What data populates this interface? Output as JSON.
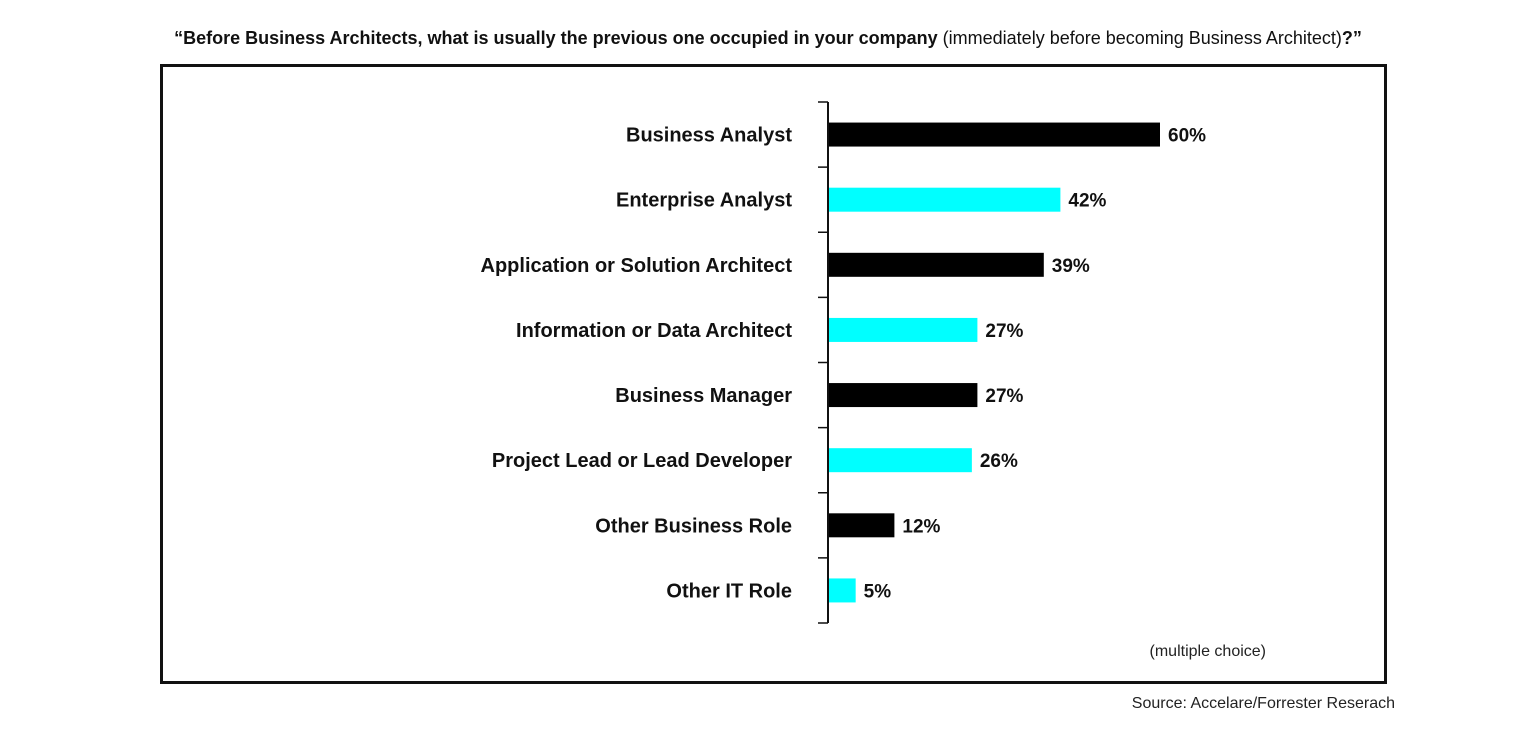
{
  "header": {
    "question_main": "“Before Business Architects, what is usually the previous one occupied in your company",
    "question_sub": "(immediately before becoming Business Architect)",
    "question_end": "?”"
  },
  "note": "(multiple choice)",
  "source": "Source: Accelare/Forrester Reserach",
  "colors": {
    "bar_dark": "#000000",
    "bar_accent": "#00FFFF",
    "axis": "#111111"
  },
  "chart_data": {
    "type": "bar",
    "orientation": "horizontal",
    "title": "",
    "xlabel": "",
    "ylabel": "",
    "xlim": [
      0,
      60
    ],
    "grid": false,
    "legend": "none",
    "categories": [
      "Business Analyst",
      "Enterprise Analyst",
      "Application or Solution Architect",
      "Information or Data Architect",
      "Business Manager",
      "Project Lead or Lead Developer",
      "Other Business Role",
      "Other IT Role"
    ],
    "values": [
      60,
      42,
      39,
      27,
      27,
      26,
      12,
      5
    ],
    "value_labels": [
      "60%",
      "42%",
      "39%",
      "27%",
      "27%",
      "26%",
      "12%",
      "5%"
    ],
    "bar_colors": [
      "dark",
      "accent",
      "dark",
      "accent",
      "dark",
      "accent",
      "dark",
      "accent"
    ]
  }
}
